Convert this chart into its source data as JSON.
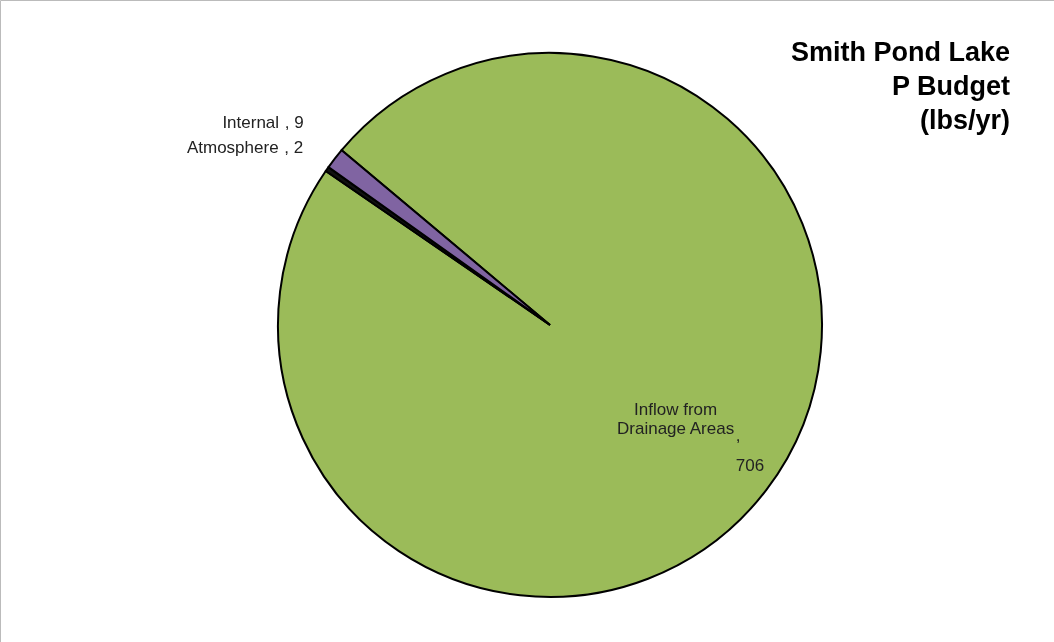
{
  "chart_data": {
    "type": "pie",
    "title": "Smith Pond Lake\nP Budget\n(lbs/yr)",
    "categories": [
      "Inflow from Drainage Areas",
      "Atmosphere",
      "Internal"
    ],
    "values": [
      706,
      2,
      9
    ],
    "colors": [
      "#9bbb59",
      "#111111",
      "#8064a2"
    ],
    "value_labels": [
      ", 706",
      ", 2",
      ", 9"
    ],
    "legend": false
  }
}
